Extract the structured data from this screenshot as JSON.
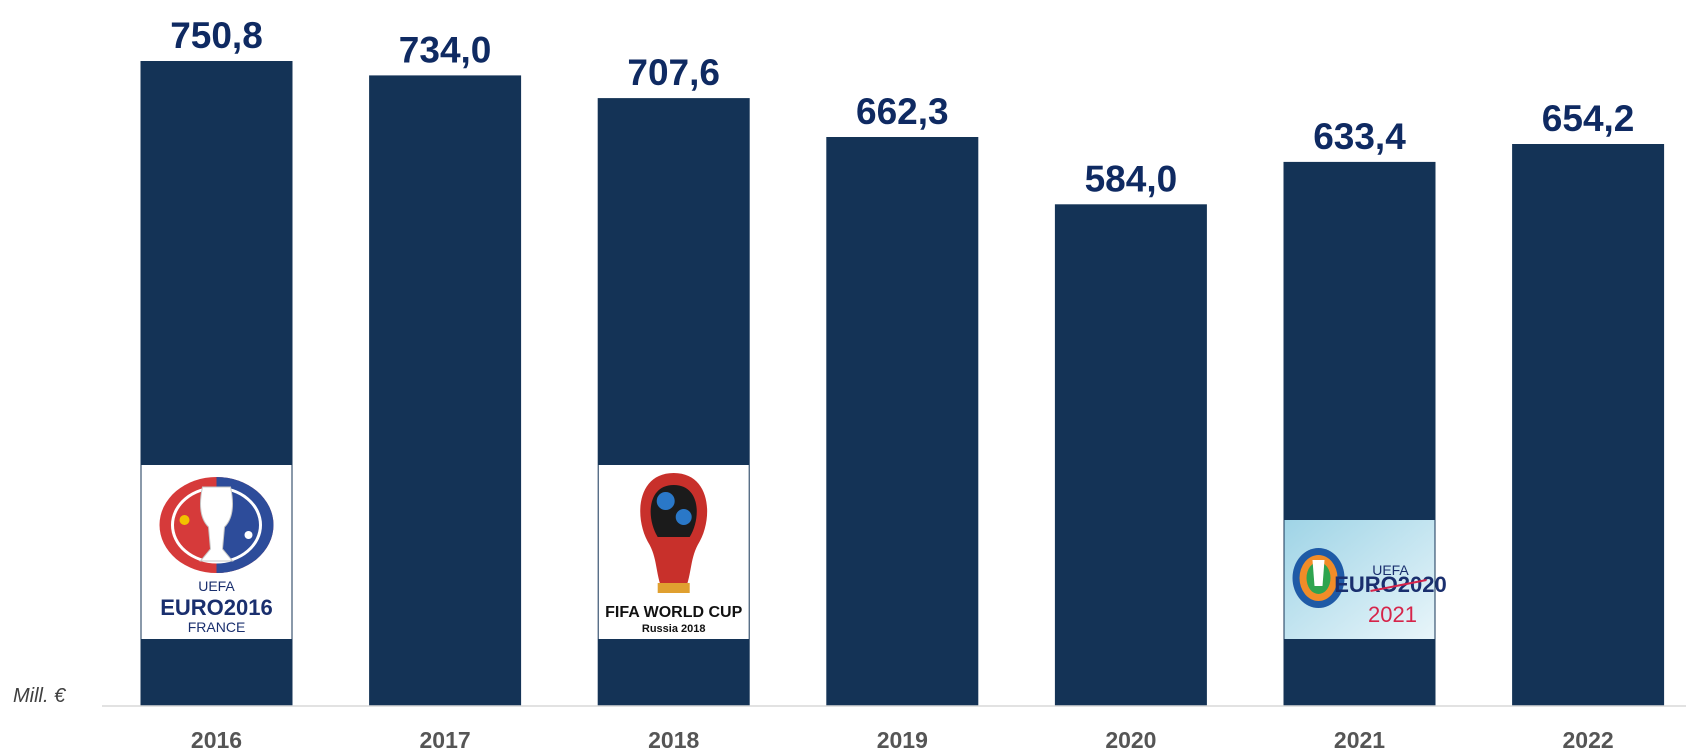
{
  "chart_data": {
    "type": "bar",
    "categories": [
      "2016",
      "2017",
      "2018",
      "2019",
      "2020",
      "2021",
      "2022"
    ],
    "values": [
      750.8,
      734.0,
      707.6,
      662.3,
      584.0,
      633.4,
      654.2
    ],
    "value_labels": [
      "750,8",
      "734,0",
      "707,6",
      "662,3",
      "584,0",
      "633,4",
      "654,2"
    ],
    "ylabel": "Mill. €",
    "ylim": [
      0,
      750.8
    ],
    "grid": false,
    "colors": {
      "bar": "#143356",
      "value_label": "#0f2a62",
      "tick_label": "#555555",
      "axis_line": "#d9d9d9"
    },
    "logos": [
      {
        "category": "2016",
        "icon": "uefa-euro-2016-france-logo",
        "lines": [
          "UEFA",
          "EURO2016",
          "FRANCE"
        ]
      },
      {
        "category": "2018",
        "icon": "fifa-world-cup-russia-2018-logo",
        "lines": [
          "FIFA WORLD CUP",
          "Russia 2018"
        ]
      },
      {
        "category": "2021",
        "icon": "uefa-euro-2020-2021-logo",
        "lines": [
          "UEFA",
          "EURO2020",
          "2021"
        ]
      }
    ]
  }
}
